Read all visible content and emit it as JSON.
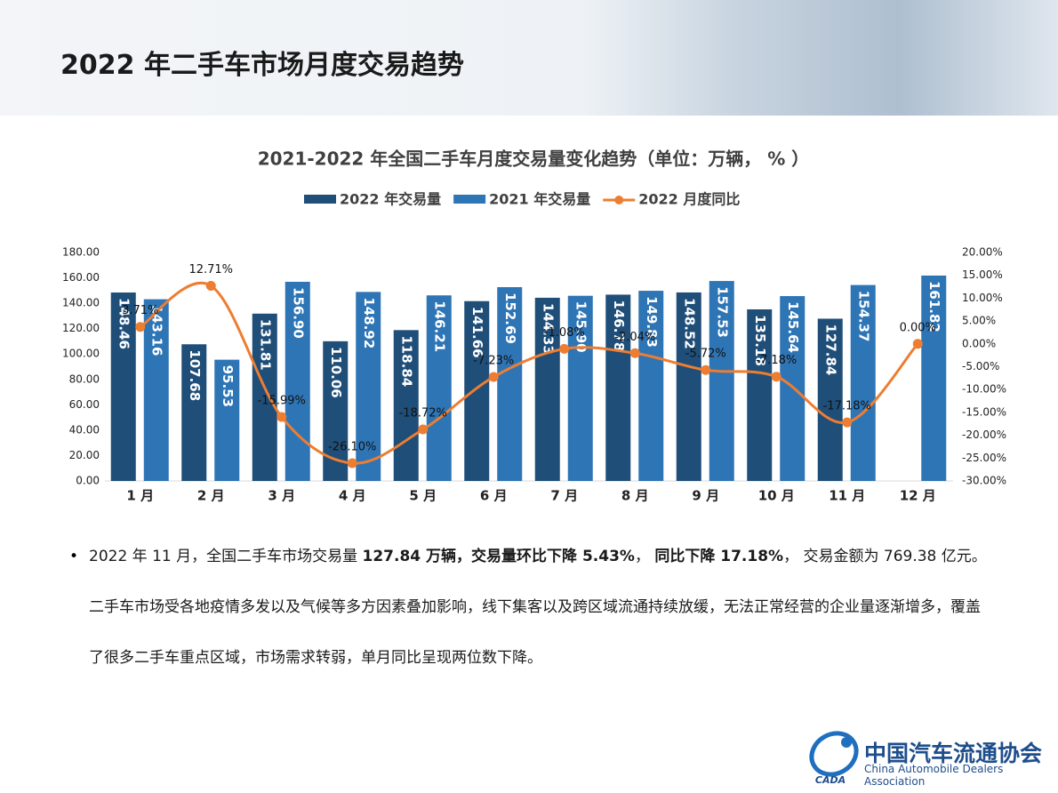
{
  "header": {
    "title": "2022 年二手车市场月度交易趋势"
  },
  "chart_data": {
    "type": "bar_line",
    "title": "2021-2022 年全国二手车月度交易量变化趋势（单位：万辆， % ）",
    "categories": [
      "1 月",
      "2 月",
      "3 月",
      "4 月",
      "5 月",
      "6 月",
      "7 月",
      "8 月",
      "9 月",
      "10 月",
      "11 月",
      "12 月"
    ],
    "series": [
      {
        "name": "2022 年交易量",
        "type": "bar",
        "color": "#1f4e79",
        "values": [
          148.46,
          107.68,
          131.81,
          110.06,
          118.84,
          141.66,
          144.33,
          146.78,
          148.52,
          135.18,
          127.84,
          null
        ],
        "value_labels": [
          "148.46",
          "107.68",
          "131.81",
          "110.06",
          "118.84",
          "141.66",
          "144.33",
          "146.78",
          "148.52",
          "135.18",
          "127.84",
          null
        ]
      },
      {
        "name": "2021 年交易量",
        "type": "bar",
        "color": "#2e75b6",
        "values": [
          143.16,
          95.53,
          156.9,
          148.92,
          146.21,
          152.69,
          145.9,
          149.83,
          157.53,
          145.64,
          154.37,
          161.82
        ],
        "value_labels": [
          "143.16",
          "95.53",
          "156.90",
          "148.92",
          "146.21",
          "152.69",
          "145.90",
          "149.83",
          "157.53",
          "145.64",
          "154.37",
          "161.82"
        ]
      },
      {
        "name": "2022 月度同比",
        "type": "line",
        "axis": "y2",
        "color": "#ed7d31",
        "values": [
          3.71,
          12.71,
          -15.99,
          -26.1,
          -18.72,
          -7.23,
          -1.08,
          -2.04,
          -5.72,
          -7.18,
          -17.18,
          0
        ],
        "value_labels": [
          "3.71%",
          "12.71%",
          "-15.99%",
          "-26.10%",
          "-18.72%",
          "-7.23%",
          "-1.08%",
          "-2.04%",
          "-5.72%",
          "-7.18%",
          "-17.18%",
          "0.00%"
        ]
      }
    ],
    "ylim": [
      0,
      180
    ],
    "yticks": [
      {
        "value": 0,
        "label": "0.00"
      },
      {
        "value": 20,
        "label": "20.00"
      },
      {
        "value": 40,
        "label": "40.00"
      },
      {
        "value": 60,
        "label": "60.00"
      },
      {
        "value": 80,
        "label": "80.00"
      },
      {
        "value": 100,
        "label": "100.00"
      },
      {
        "value": 120,
        "label": "120.00"
      },
      {
        "value": 140,
        "label": "140.00"
      },
      {
        "value": 160,
        "label": "160.00"
      },
      {
        "value": 180,
        "label": "180.00"
      }
    ],
    "y2lim": [
      -30,
      20
    ],
    "y2ticks": [
      {
        "value": -30,
        "label": "-30.00%"
      },
      {
        "value": -25,
        "label": "-25.00%"
      },
      {
        "value": -20,
        "label": "-20.00%"
      },
      {
        "value": -15,
        "label": "-15.00%"
      },
      {
        "value": -10,
        "label": "-10.00%"
      },
      {
        "value": -5,
        "label": "-5.00%"
      },
      {
        "value": 0,
        "label": "0.00%"
      },
      {
        "value": 5,
        "label": "5.00%"
      },
      {
        "value": 10,
        "label": "10.00%"
      },
      {
        "value": 15,
        "label": "15.00%"
      },
      {
        "value": 20,
        "label": "20.00%"
      }
    ],
    "legend": "top",
    "grid": false
  },
  "bullet": [
    {
      "text": "2022 年 11 月，全国二手车市场交易量 ",
      "bold": false
    },
    {
      "text": "127.84 万辆，交易量环比下降 5.43%",
      "bold": true
    },
    {
      "text": "， ",
      "bold": false
    },
    {
      "text": "同比下降 17.18%",
      "bold": true
    },
    {
      "text": "， 交易金额为 769.38 亿元。二手车市场受各地疫情多发以及气候等多方因素叠加影响，线下集客以及跨区域流通持续放缓，无法正常经营的企业量逐渐增多，覆盖了很多二手车重点区域，市场需求转弱，单月同比呈现两位数下降。",
      "bold": false
    }
  ],
  "footer": {
    "org_cn": "中国汽车流通协会",
    "org_en": "China Automobile Dealers Association",
    "logo": "CADA"
  }
}
